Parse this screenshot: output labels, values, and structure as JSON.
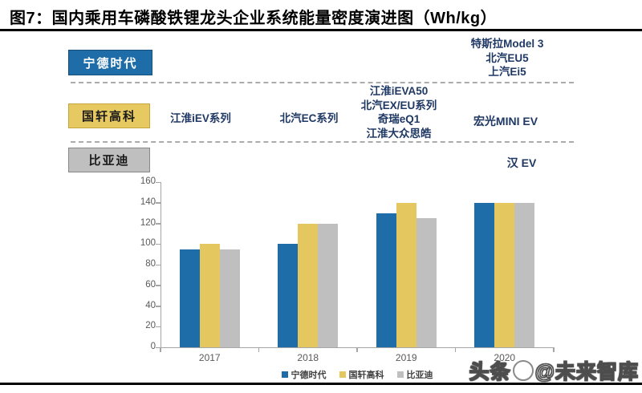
{
  "title": "图7：国内乘用车磷酸铁锂龙头企业系统能量密度演进图（Wh/kg）",
  "companies": {
    "catl": "宁德时代",
    "guoxuan": "国轩高科",
    "byd": "比亚迪"
  },
  "annotations": {
    "catl_models": [
      "特斯拉Model 3",
      "北汽EU5",
      "上汽Ei5"
    ],
    "guoxuan_2017": "江淮iEV系列",
    "guoxuan_2018": "北汽EC系列",
    "guoxuan_2019": [
      "江淮iEVA50",
      "北汽EX/EU系列",
      "奇瑞eQ1",
      "江淮大众思皓"
    ],
    "guoxuan_2020": "宏光MINI EV",
    "byd_2020": "汉 EV"
  },
  "chart_data": {
    "type": "bar",
    "categories": [
      "2017",
      "2018",
      "2019",
      "2020"
    ],
    "series": [
      {
        "name": "宁德时代",
        "color": "#1F6DA8",
        "values": [
          95,
          100,
          130,
          140
        ]
      },
      {
        "name": "国轩高科",
        "color": "#E4C85F",
        "values": [
          100,
          120,
          140,
          140
        ]
      },
      {
        "name": "比亚迪",
        "color": "#BFBFBF",
        "values": [
          95,
          120,
          125,
          140
        ]
      }
    ],
    "title": "",
    "xlabel": "",
    "ylabel": "",
    "ylim": [
      0,
      160
    ],
    "ytick_step": 20,
    "grid": false,
    "legend_position": "bottom"
  },
  "colors": {
    "annotation_navy": "#1F3864",
    "catl_blue": "#1F6DA8",
    "guoxuan_yellow": "#E4C85F",
    "byd_gray": "#BFBFBF"
  },
  "watermark": {
    "left": "头条",
    "right": "@未来智库"
  }
}
